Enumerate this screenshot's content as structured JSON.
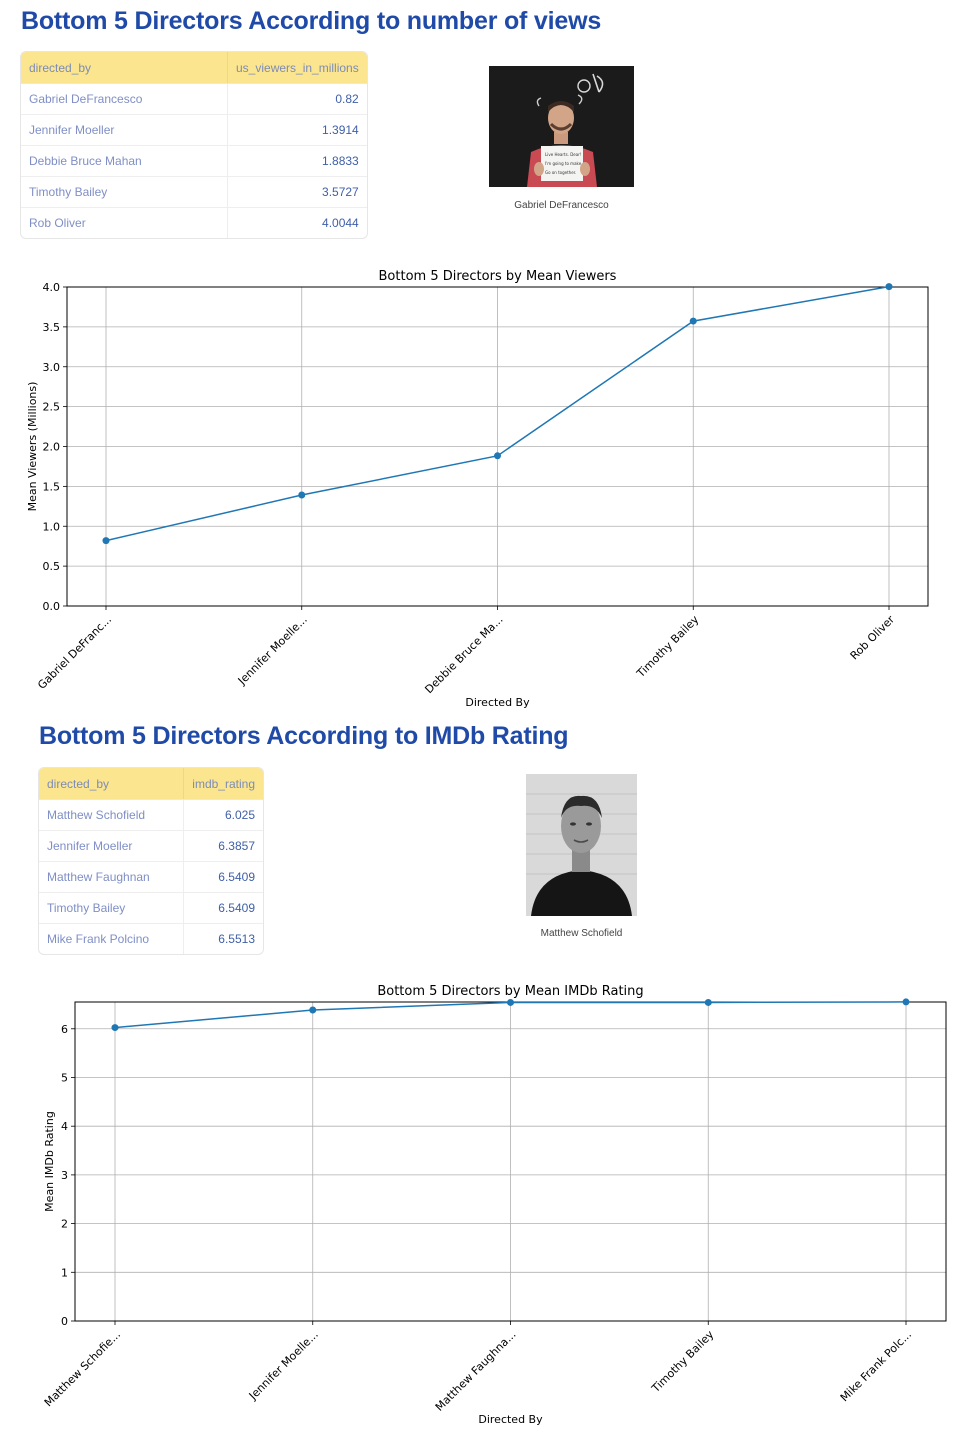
{
  "section1": {
    "title": "Bottom 5 Directors According to number of views",
    "table": {
      "columns": [
        "directed_by",
        "us_viewers_in_millions"
      ],
      "rows": [
        [
          "Gabriel DeFrancesco",
          "0.82"
        ],
        [
          "Jennifer Moeller",
          "1.3914"
        ],
        [
          "Debbie Bruce Mahan",
          "1.8833"
        ],
        [
          "Timothy Bailey",
          "3.5727"
        ],
        [
          "Rob Oliver",
          "4.0044"
        ]
      ]
    },
    "photo_caption": "Gabriel DeFrancesco",
    "photo_sign_text": [
      "Live Hearts. Dear!",
      "I'm going to make...",
      "Go on together."
    ]
  },
  "section2": {
    "title": "Bottom 5 Directors According to IMDb Rating",
    "table": {
      "columns": [
        "directed_by",
        "imdb_rating"
      ],
      "rows": [
        [
          "Matthew Schofield",
          "6.025"
        ],
        [
          "Jennifer Moeller",
          "6.3857"
        ],
        [
          "Matthew Faughnan",
          "6.5409"
        ],
        [
          "Timothy Bailey",
          "6.5409"
        ],
        [
          "Mike Frank Polcino",
          "6.5513"
        ]
      ]
    },
    "photo_caption": "Matthew Schofield"
  },
  "chart_data": [
    {
      "type": "line",
      "title": "Bottom 5 Directors by Mean Viewers",
      "xlabel": "Directed By",
      "ylabel": "Mean Viewers (Millions)",
      "categories": [
        "Gabriel DeFranc...",
        "Jennifer Moelle...",
        "Debbie Bruce Ma...",
        "Timothy Bailey",
        "Rob Oliver"
      ],
      "values": [
        0.82,
        1.3914,
        1.8833,
        3.5727,
        4.0044
      ],
      "ylim": [
        0,
        4.0
      ],
      "yticks": [
        "0.0",
        "0.5",
        "1.0",
        "1.5",
        "2.0",
        "2.5",
        "3.0",
        "3.5",
        "4.0"
      ],
      "grid": true,
      "color": "#1f77b4"
    },
    {
      "type": "line",
      "title": "Bottom 5 Directors by Mean IMDb Rating",
      "xlabel": "Directed By",
      "ylabel": "Mean IMDb Rating",
      "categories": [
        "Matthew Schofie...",
        "Jennifer Moelle...",
        "Matthew Faughna...",
        "Timothy Bailey",
        "Mike Frank Polc..."
      ],
      "values": [
        6.025,
        6.3857,
        6.5409,
        6.5409,
        6.5513
      ],
      "ylim": [
        0,
        6.55
      ],
      "yticks": [
        "0",
        "1",
        "2",
        "3",
        "4",
        "5",
        "6"
      ],
      "grid": true,
      "color": "#1f77b4"
    }
  ]
}
